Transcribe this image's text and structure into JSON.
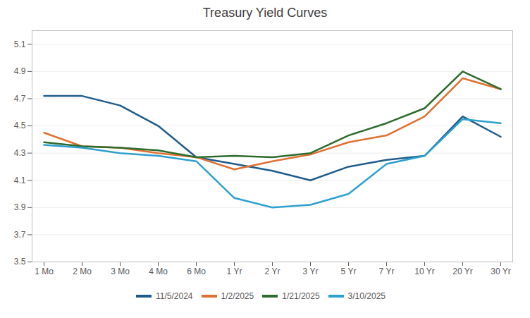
{
  "chart_data": {
    "type": "line",
    "title": "Treasury Yield Curves",
    "categories": [
      "1 Mo",
      "2 Mo",
      "3 Mo",
      "4 Mo",
      "6 Mo",
      "1 Yr",
      "2 Yr",
      "3 Yr",
      "5 Yr",
      "7 Yr",
      "10 Yr",
      "20 Yr",
      "30 Yr"
    ],
    "series": [
      {
        "name": "11/5/2024",
        "color": "#1f5c8b",
        "values": [
          4.72,
          4.72,
          4.65,
          4.5,
          4.27,
          4.22,
          4.17,
          4.1,
          4.2,
          4.25,
          4.28,
          4.57,
          4.42
        ]
      },
      {
        "name": "1/2/2025",
        "color": "#e07030",
        "values": [
          4.45,
          4.35,
          4.34,
          4.3,
          4.27,
          4.18,
          4.24,
          4.29,
          4.38,
          4.43,
          4.57,
          4.85,
          4.77
        ]
      },
      {
        "name": "1/21/2025",
        "color": "#2e6b2e",
        "values": [
          4.38,
          4.35,
          4.34,
          4.32,
          4.27,
          4.28,
          4.27,
          4.3,
          4.43,
          4.52,
          4.63,
          4.9,
          4.77
        ]
      },
      {
        "name": "3/10/2025",
        "color": "#2ea0d0",
        "values": [
          4.36,
          4.34,
          4.3,
          4.28,
          4.24,
          3.97,
          3.9,
          3.92,
          4.0,
          4.22,
          4.28,
          4.55,
          4.52
        ]
      }
    ],
    "ylim": [
      3.5,
      5.2
    ],
    "yticks": [
      3.5,
      3.7,
      3.9,
      4.1,
      4.3,
      4.5,
      4.7,
      4.9,
      5.1
    ],
    "grid": true,
    "legend": "bottom"
  }
}
